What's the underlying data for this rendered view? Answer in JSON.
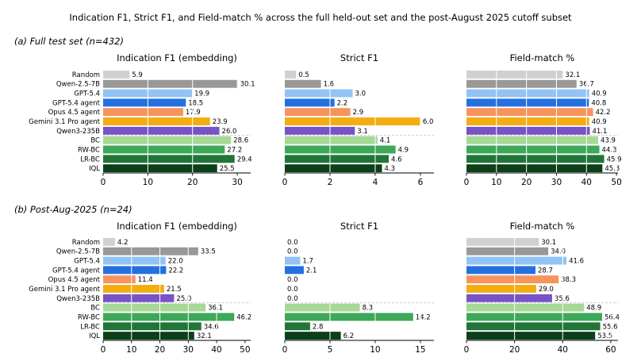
{
  "figure": {
    "title": "Indication F1, Strict F1, and Field-match % across the full held-out set and the post-August 2025 cutoff subset",
    "rows": [
      {
        "title": "(a) Full test set (n=432)"
      },
      {
        "title": "(b) Post-Aug-2025 (n=24)"
      }
    ]
  },
  "methods": [
    "Random",
    "Qwen-2.5-7B",
    "GPT-5.4",
    "GPT-5.4 agent",
    "Opus 4.5 agent",
    "Gemini 3.1 Pro agent",
    "Qwen3-235B",
    "BC",
    "RW-BC",
    "LR-BC",
    "IQL"
  ],
  "colors": [
    "#d0d0d0",
    "#989898",
    "#92c3f5",
    "#2470e0",
    "#f7935c",
    "#f3ad12",
    "#7753c6",
    "#a6d896",
    "#3ea859",
    "#217538",
    "#0b4019"
  ],
  "chart_data": [
    {
      "type": "bar",
      "title": "Indication F1 (embedding)",
      "row": 0,
      "categories": [
        "Random",
        "Qwen-2.5-7B",
        "GPT-5.4",
        "GPT-5.4 agent",
        "Opus 4.5 agent",
        "Gemini 3.1 Pro agent",
        "Qwen3-235B",
        "BC",
        "RW-BC",
        "LR-BC",
        "IQL"
      ],
      "values": [
        5.9,
        30.1,
        19.9,
        18.5,
        17.9,
        23.9,
        26.0,
        28.6,
        27.2,
        29.4,
        25.5
      ],
      "labels": [
        "5.9",
        "30.1",
        "19.9",
        "18.5",
        "17.9",
        "23.9",
        "26.0",
        "28.6",
        "27.2",
        "29.4",
        "25.5"
      ],
      "xlim": [
        0,
        33
      ],
      "xticks": [
        0,
        10,
        20,
        30
      ],
      "xlabel": "",
      "ylabel": ""
    },
    {
      "type": "bar",
      "title": "Strict F1",
      "row": 0,
      "categories": [
        "Random",
        "Qwen-2.5-7B",
        "GPT-5.4",
        "GPT-5.4 agent",
        "Opus 4.5 agent",
        "Gemini 3.1 Pro agent",
        "Qwen3-235B",
        "BC",
        "RW-BC",
        "LR-BC",
        "IQL"
      ],
      "values": [
        0.5,
        1.6,
        3.0,
        2.2,
        2.9,
        6.0,
        3.1,
        4.1,
        4.9,
        4.6,
        4.3
      ],
      "labels": [
        "0.5",
        "1.6",
        "3.0",
        "2.2",
        "2.9",
        "6.0",
        "3.1",
        "4.1",
        "4.9",
        "4.6",
        "4.3"
      ],
      "xlim": [
        0,
        6.6
      ],
      "xticks": [
        0,
        2,
        4,
        6
      ],
      "xlabel": "",
      "ylabel": ""
    },
    {
      "type": "bar",
      "title": "Field-match %",
      "row": 0,
      "categories": [
        "Random",
        "Qwen-2.5-7B",
        "GPT-5.4",
        "GPT-5.4 agent",
        "Opus 4.5 agent",
        "Gemini 3.1 Pro agent",
        "Qwen3-235B",
        "BC",
        "RW-BC",
        "LR-BC",
        "IQL"
      ],
      "values": [
        32.1,
        36.7,
        40.9,
        40.8,
        42.2,
        40.9,
        41.1,
        43.9,
        44.3,
        45.9,
        45.3
      ],
      "labels": [
        "32.1",
        "36.7",
        "40.9",
        "40.8",
        "42.2",
        "40.9",
        "41.1",
        "43.9",
        "44.3",
        "45.9",
        "45.3"
      ],
      "xlim": [
        0,
        50.5
      ],
      "xticks": [
        0,
        10,
        20,
        30,
        40,
        50
      ],
      "xlabel": "",
      "ylabel": ""
    },
    {
      "type": "bar",
      "title": "Indication F1 (embedding)",
      "row": 1,
      "categories": [
        "Random",
        "Qwen-2.5-7B",
        "GPT-5.4",
        "GPT-5.4 agent",
        "Opus 4.5 agent",
        "Gemini 3.1 Pro agent",
        "Qwen3-235B",
        "BC",
        "RW-BC",
        "LR-BC",
        "IQL"
      ],
      "values": [
        4.2,
        33.5,
        22.0,
        22.2,
        11.4,
        21.5,
        25.0,
        36.1,
        46.2,
        34.6,
        32.1
      ],
      "labels": [
        "4.2",
        "33.5",
        "22.0",
        "22.2",
        "11.4",
        "21.5",
        "25.0",
        "36.1",
        "46.2",
        "34.6",
        "32.1"
      ],
      "xlim": [
        0,
        52
      ],
      "xticks": [
        0,
        10,
        20,
        30,
        40,
        50
      ],
      "xlabel": "",
      "ylabel": ""
    },
    {
      "type": "bar",
      "title": "Strict F1",
      "row": 1,
      "categories": [
        "Random",
        "Qwen-2.5-7B",
        "GPT-5.4",
        "GPT-5.4 agent",
        "Opus 4.5 agent",
        "Gemini 3.1 Pro agent",
        "Qwen3-235B",
        "BC",
        "RW-BC",
        "LR-BC",
        "IQL"
      ],
      "values": [
        0.0,
        0.0,
        1.7,
        2.1,
        0.0,
        0.0,
        0.0,
        8.3,
        14.2,
        2.8,
        6.2
      ],
      "labels": [
        "0.0",
        "0.0",
        "1.7",
        "2.1",
        "0.0",
        "0.0",
        "0.0",
        "8.3",
        "14.2",
        "2.8",
        "6.2"
      ],
      "xlim": [
        0,
        16.5
      ],
      "xticks": [
        0,
        5,
        10,
        15
      ],
      "xlabel": "",
      "ylabel": ""
    },
    {
      "type": "bar",
      "title": "Field-match %",
      "row": 1,
      "categories": [
        "Random",
        "Qwen-2.5-7B",
        "GPT-5.4",
        "GPT-5.4 agent",
        "Opus 4.5 agent",
        "Gemini 3.1 Pro agent",
        "Qwen3-235B",
        "BC",
        "RW-BC",
        "LR-BC",
        "IQL"
      ],
      "values": [
        30.1,
        34.0,
        41.6,
        28.7,
        38.3,
        29.0,
        35.6,
        48.9,
        56.4,
        55.6,
        53.5
      ],
      "labels": [
        "30.1",
        "34.0",
        "41.6",
        "28.7",
        "38.3",
        "29.0",
        "35.6",
        "48.9",
        "56.4",
        "55.6",
        "53.5"
      ],
      "xlim": [
        0,
        63
      ],
      "xticks": [
        0,
        20,
        40,
        60
      ],
      "xlabel": "",
      "ylabel": ""
    }
  ]
}
